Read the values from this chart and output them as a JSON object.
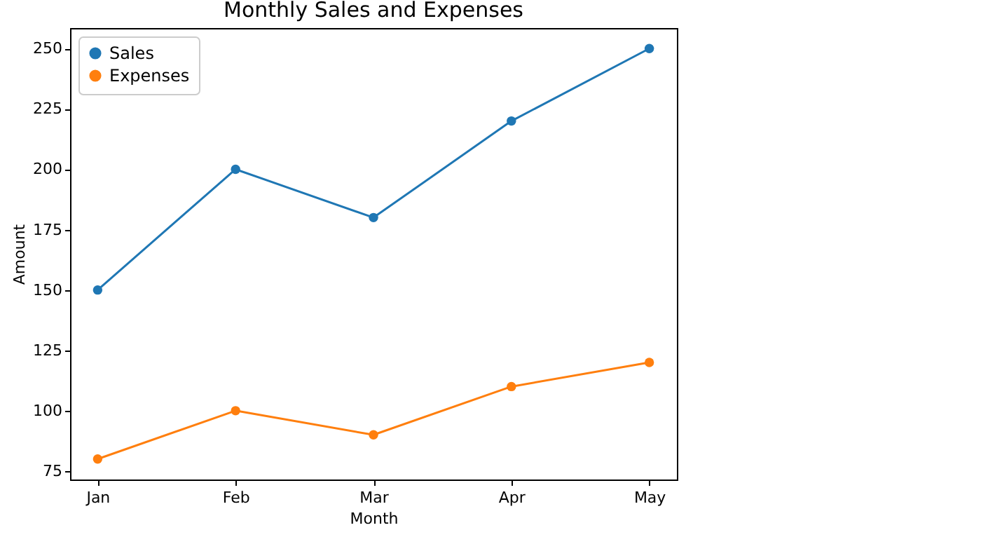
{
  "chart_data": {
    "type": "line",
    "title": "Monthly Sales and Expenses",
    "xlabel": "Month",
    "ylabel": "Amount",
    "categories": [
      "Jan",
      "Feb",
      "Mar",
      "Apr",
      "May"
    ],
    "series": [
      {
        "name": "Sales",
        "color": "#1f77b4",
        "values": [
          150,
          200,
          180,
          220,
          250
        ]
      },
      {
        "name": "Expenses",
        "color": "#ff7f0e",
        "values": [
          80,
          100,
          90,
          110,
          120
        ]
      }
    ],
    "ylim": [
      71.5,
      258.5
    ],
    "yticks": [
      75,
      100,
      125,
      150,
      175,
      200,
      225,
      250
    ],
    "grid": false,
    "legend": "top left",
    "marker": "circle",
    "line_style": "solid"
  }
}
